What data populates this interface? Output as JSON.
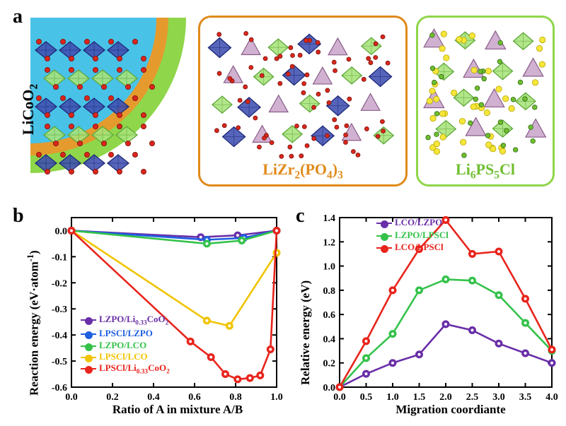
{
  "labels": {
    "panel_a": "a",
    "panel_b": "b",
    "panel_c": "c"
  },
  "panel_a": {
    "licoo2": {
      "text": "LiCoO",
      "sub1": "2",
      "color": "#000000",
      "border": "#000000"
    },
    "lzpo": {
      "text1": "LiZr",
      "sub1": "2",
      "text2": "(PO",
      "sub2": "4",
      "text3": ")",
      "sub3": "3",
      "color": "#e08a1a",
      "border": "#e08a1a"
    },
    "lpscl": {
      "text1": "Li",
      "sub1": "6",
      "text2": "PS",
      "sub2": "5",
      "text3": "Cl",
      "color": "#6fbf2f",
      "border": "#8fd64a"
    },
    "colors": {
      "blue_poly": "#3f4fb0",
      "blue_edge": "#1e2a78",
      "green_poly": "#a7e37a",
      "green_edge": "#5fa83a",
      "pink_poly": "#c9a3c9",
      "pink_edge": "#8a5e8a",
      "oxygen": "#d9261c",
      "li_small": "#6fbf2f",
      "sulfur": "#f5e73a",
      "disc_blue": "#49c2e8",
      "ring_orange": "#e59a2e",
      "ring_green": "#8fd64a"
    }
  },
  "chart_b": {
    "type": "line",
    "xlabel": "Ratio of A in mixture A/B",
    "ylabel_prefix": "Reaction energy (eV·atom",
    "ylabel_sup": "-1",
    "ylabel_suffix": ")",
    "xlim": [
      0.0,
      1.0
    ],
    "ylim": [
      -0.6,
      0.05
    ],
    "xticks": [
      0.0,
      0.2,
      0.4,
      0.6,
      0.8,
      1.0
    ],
    "yticks": [
      0.0,
      -0.1,
      -0.2,
      -0.3,
      -0.4,
      -0.5,
      -0.6
    ],
    "axis_color": "#000000",
    "background": "#ffffff",
    "title_fontsize": 17,
    "tick_fontsize": 14,
    "series": [
      {
        "name": "LZPO/Li₀.₃₃CoO₂",
        "legend_html": "LZPO/Li<span class='sub-sm'>0.33</span>CoO<span class='sub-sm'>2</span>",
        "color": "#6a2fa8",
        "x": [
          0.0,
          0.63,
          0.81,
          1.0
        ],
        "y": [
          0.0,
          -0.025,
          -0.018,
          0.0
        ]
      },
      {
        "name": "LPSCl/LZPO",
        "legend_html": "LPSCl/LZPO",
        "color": "#1e5fe0",
        "x": [
          0.0,
          0.66,
          0.84,
          1.0
        ],
        "y": [
          0.0,
          -0.035,
          -0.028,
          0.0
        ]
      },
      {
        "name": "LZPO/LCO",
        "legend_html": "LZPO/LCO",
        "color": "#34c24a",
        "x": [
          0.0,
          0.66,
          0.83,
          1.0
        ],
        "y": [
          0.0,
          -0.05,
          -0.038,
          0.0
        ]
      },
      {
        "name": "LPSCl/LCO",
        "legend_html": "LPSCl/LCO",
        "color": "#f0c400",
        "x": [
          0.0,
          0.66,
          0.77,
          1.0
        ],
        "y": [
          0.0,
          -0.345,
          -0.365,
          -0.085
        ]
      },
      {
        "name": "LPSCl/Li₀.₃₃CoO₂",
        "legend_html": "LPSCl/Li<span class='sub-sm'>0.33</span>CoO<span class='sub-sm'>2</span>",
        "color": "#e8241c",
        "x": [
          0.0,
          0.58,
          0.68,
          0.75,
          0.81,
          0.87,
          0.92,
          0.97,
          1.0
        ],
        "y": [
          0.0,
          -0.425,
          -0.485,
          -0.55,
          -0.57,
          -0.565,
          -0.555,
          -0.455,
          0.0
        ]
      }
    ]
  },
  "chart_c": {
    "type": "line",
    "xlabel": "Migration coordiante",
    "ylabel": "Relative energy (eV)",
    "xlim": [
      0.0,
      4.0
    ],
    "ylim": [
      0.0,
      1.4
    ],
    "xticks": [
      0.0,
      0.5,
      1.0,
      1.5,
      2.0,
      2.5,
      3.0,
      3.5,
      4.0
    ],
    "yticks": [
      0.0,
      0.2,
      0.4,
      0.6,
      0.8,
      1.0,
      1.2,
      1.4
    ],
    "axis_color": "#000000",
    "background": "#ffffff",
    "title_fontsize": 17,
    "tick_fontsize": 14,
    "series": [
      {
        "name": "LCO/LZPO",
        "legend_html": "LCO/LZPO",
        "color": "#6a2fa8",
        "x": [
          0.0,
          0.5,
          1.0,
          1.5,
          2.0,
          2.5,
          3.0,
          3.5,
          4.0
        ],
        "y": [
          0.0,
          0.11,
          0.2,
          0.27,
          0.52,
          0.47,
          0.36,
          0.28,
          0.2
        ]
      },
      {
        "name": "LZPO/LPSCl",
        "legend_html": "LZPO/LPSCl",
        "color": "#34c24a",
        "x": [
          0.0,
          0.5,
          1.0,
          1.5,
          2.0,
          2.5,
          3.0,
          3.5,
          4.0
        ],
        "y": [
          0.0,
          0.24,
          0.44,
          0.8,
          0.89,
          0.88,
          0.76,
          0.53,
          0.3
        ]
      },
      {
        "name": "LCO/LPSCl",
        "legend_html": "LCO/LPSCl",
        "color": "#e8241c",
        "x": [
          0.0,
          0.5,
          1.0,
          1.5,
          2.0,
          2.5,
          3.0,
          3.5,
          4.0
        ],
        "y": [
          0.0,
          0.38,
          0.8,
          1.14,
          1.38,
          1.1,
          1.12,
          0.73,
          0.31
        ]
      }
    ]
  }
}
